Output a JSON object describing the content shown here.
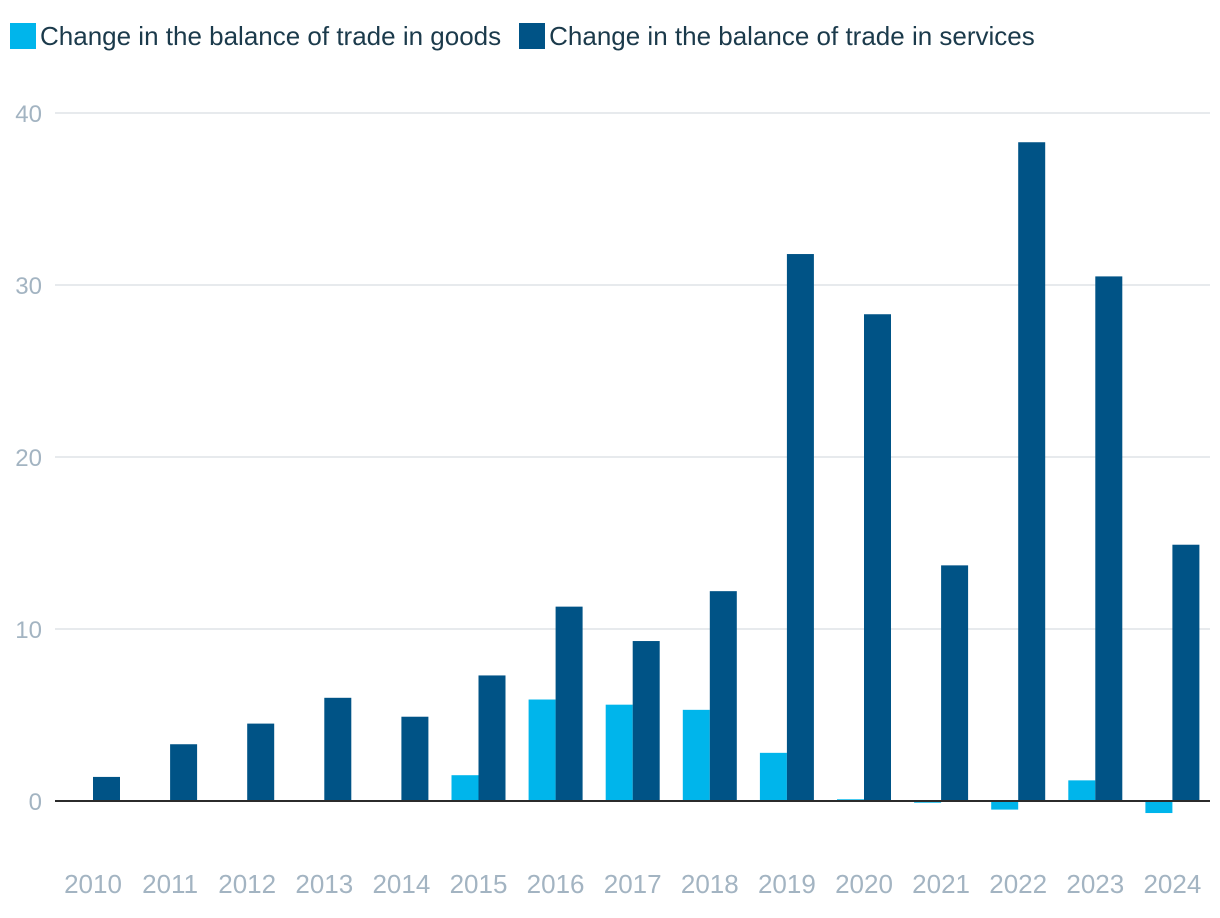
{
  "colors": {
    "goods": "#00b5eb",
    "services": "#005386",
    "grid": "#dfe3e7",
    "axis": "#2b2b2b"
  },
  "chart_data": {
    "type": "bar",
    "title": "",
    "xlabel": "",
    "ylabel": "",
    "ylim": [
      -3,
      40
    ],
    "yticks": [
      0,
      10,
      20,
      30,
      40
    ],
    "grid": true,
    "legend_position": "top-left",
    "categories": [
      "2010",
      "2011",
      "2012",
      "2013",
      "2014",
      "2015",
      "2016",
      "2017",
      "2018",
      "2019",
      "2020",
      "2021",
      "2022",
      "2023",
      "2024"
    ],
    "series": [
      {
        "name": "Change in the balance of trade in goods",
        "values": [
          0,
          0,
          0,
          0,
          0,
          1.5,
          5.9,
          5.6,
          5.3,
          2.8,
          0.1,
          -0.1,
          -0.5,
          1.2,
          -0.7
        ]
      },
      {
        "name": "Change in the balance of trade in services",
        "values": [
          1.4,
          3.3,
          4.5,
          6.0,
          4.9,
          7.3,
          11.3,
          9.3,
          12.2,
          31.8,
          28.3,
          13.7,
          38.3,
          30.5,
          14.9
        ]
      }
    ]
  }
}
